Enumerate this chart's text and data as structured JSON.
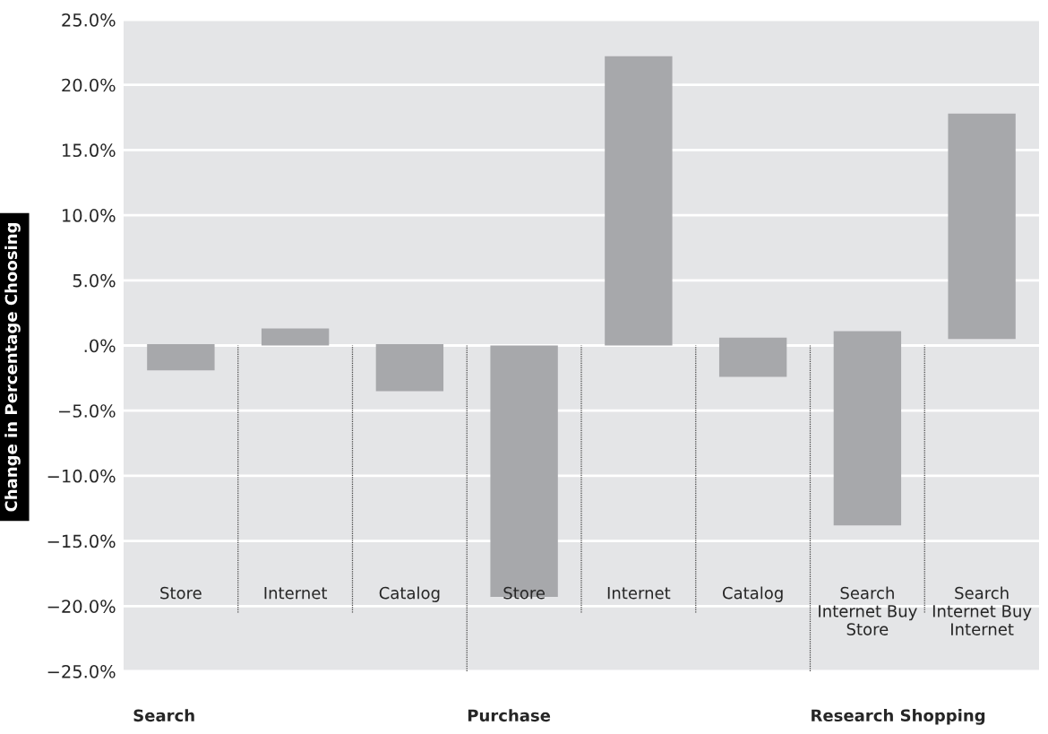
{
  "chart_data": {
    "type": "bar",
    "ylabel": "Change in Percentage Choosing",
    "categories": [
      "Store",
      "Internet",
      "Catalog",
      "Store",
      "Internet",
      "Catalog",
      "Search\nInternet Buy\nStore",
      "Search\nInternet Buy\nInternet"
    ],
    "values": [
      -2.0,
      1.3,
      -3.6,
      -19.3,
      22.2,
      -3.0,
      -14.9,
      17.3
    ],
    "base": [
      0.1,
      0,
      0.1,
      0,
      0,
      0.6,
      1.1,
      0.5
    ],
    "color": "#a7a8ab",
    "ylim": [
      -25,
      25
    ],
    "yticks": [
      {
        "value": -25,
        "label": "−25.0%"
      },
      {
        "value": -20,
        "label": "−20.0%"
      },
      {
        "value": -15,
        "label": "−15.0%"
      },
      {
        "value": -10,
        "label": "−10.0%"
      },
      {
        "value": -5,
        "label": "−5.0%"
      },
      {
        "value": 0,
        "label": ".0%"
      },
      {
        "value": 5,
        "label": "5.0%"
      },
      {
        "value": 10,
        "label": "10.0%"
      },
      {
        "value": 15,
        "label": "15.0%"
      },
      {
        "value": 20,
        "label": "20.0%"
      },
      {
        "value": 25,
        "label": "25.0%"
      }
    ],
    "grid": "y",
    "annotations": [
      "Search",
      "Purchase",
      "Research Shopping"
    ]
  }
}
